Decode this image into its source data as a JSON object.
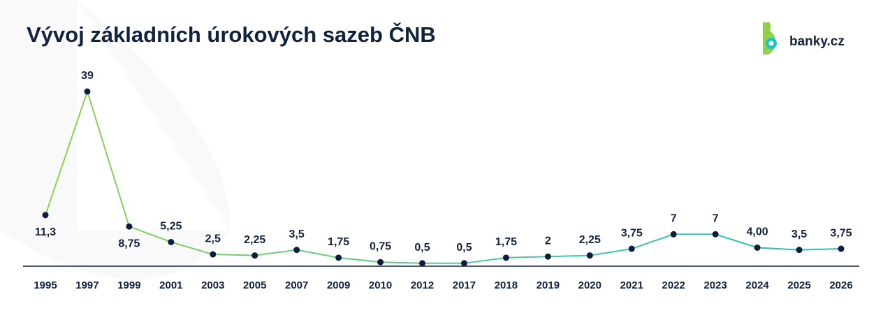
{
  "chart_data": {
    "type": "line",
    "title": "Vývoj základních úrokových sazeb ČNB",
    "logo": "banky.cz",
    "categories": [
      "1995",
      "1997",
      "1999",
      "2001",
      "2003",
      "2005",
      "2007",
      "2009",
      "2010",
      "2012",
      "2017",
      "2018",
      "2019",
      "2020",
      "2021",
      "2022",
      "2023",
      "2024",
      "2025",
      "2026"
    ],
    "values": [
      11.3,
      39,
      8.75,
      5.25,
      2.5,
      2.25,
      3.5,
      1.75,
      0.75,
      0.5,
      0.5,
      1.75,
      2,
      2.25,
      3.75,
      7,
      7,
      4.0,
      3.5,
      3.75
    ],
    "value_labels": [
      "11,3",
      "39",
      "8,75",
      "5,25",
      "2,5",
      "2,25",
      "3,5",
      "1,75",
      "0,75",
      "0,5",
      "0,5",
      "1,75",
      "2",
      "2,25",
      "3,75",
      "7",
      "7",
      "4,00",
      "3,5",
      "3,75"
    ],
    "line_colors": [
      "#8fd14f",
      "#17c3c9"
    ],
    "marker_color": "#0f1d3d"
  }
}
